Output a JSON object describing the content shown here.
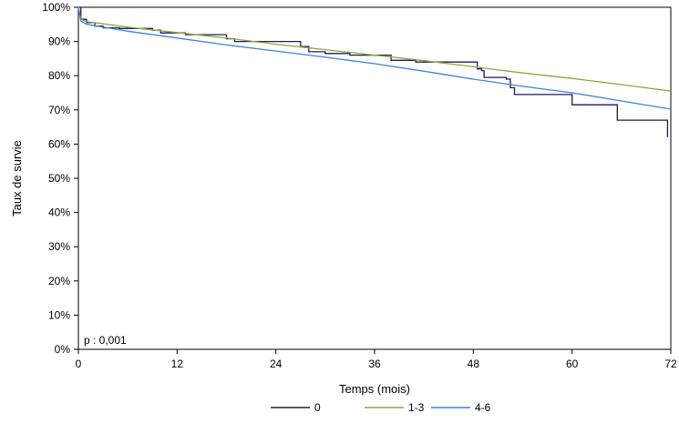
{
  "chart_data": {
    "type": "line",
    "xlabel": "Temps (mois)",
    "ylabel": "Taux de survie",
    "xlim": [
      0,
      72
    ],
    "ylim": [
      0,
      100
    ],
    "x_ticks": [
      "0",
      "12",
      "24",
      "36",
      "48",
      "60",
      "72"
    ],
    "y_ticks": [
      "0%",
      "10%",
      "20%",
      "30%",
      "40%",
      "50%",
      "60%",
      "70%",
      "80%",
      "90%",
      "100%"
    ],
    "grid": false,
    "legend_position": "bottom",
    "annotation": "p : 0,001",
    "series": [
      {
        "name": "0",
        "color": "#1c1c5c",
        "step": true,
        "points": [
          [
            0,
            100
          ],
          [
            0.3,
            96.5
          ],
          [
            1,
            95.5
          ],
          [
            2,
            94.5
          ],
          [
            3,
            94
          ],
          [
            5,
            93.8
          ],
          [
            9,
            93.3
          ],
          [
            10,
            92.5
          ],
          [
            13,
            92
          ],
          [
            17,
            92
          ],
          [
            18,
            90.8
          ],
          [
            19,
            90
          ],
          [
            26,
            90
          ],
          [
            27,
            88.5
          ],
          [
            28,
            87
          ],
          [
            30,
            86.5
          ],
          [
            33,
            86
          ],
          [
            37,
            86
          ],
          [
            38,
            84.5
          ],
          [
            41,
            84
          ],
          [
            45,
            84
          ],
          [
            48.2,
            84
          ],
          [
            48.5,
            82
          ],
          [
            49,
            81.5
          ],
          [
            49.3,
            79.5
          ],
          [
            52,
            79
          ],
          [
            52.5,
            76.5
          ],
          [
            53,
            74.5
          ],
          [
            58,
            74.5
          ],
          [
            60,
            71.5
          ],
          [
            65,
            71.5
          ],
          [
            65.5,
            67
          ],
          [
            71.5,
            67
          ],
          [
            71.6,
            62
          ]
        ]
      },
      {
        "name": "1-3",
        "color": "#8ea63a",
        "step": false,
        "points": [
          [
            0,
            100
          ],
          [
            0.3,
            96.5
          ],
          [
            1,
            95.8
          ],
          [
            6,
            94.2
          ],
          [
            12,
            92.6
          ],
          [
            18,
            91
          ],
          [
            24,
            89.2
          ],
          [
            30,
            87.6
          ],
          [
            36,
            86
          ],
          [
            42,
            84.4
          ],
          [
            48,
            82.6
          ],
          [
            54,
            80.8
          ],
          [
            60,
            79.2
          ],
          [
            66,
            77.4
          ],
          [
            72,
            75.5
          ]
        ]
      },
      {
        "name": "4-6",
        "color": "#3b85d8",
        "step": false,
        "points": [
          [
            0,
            100
          ],
          [
            0.3,
            96
          ],
          [
            1,
            95
          ],
          [
            6,
            93
          ],
          [
            12,
            91
          ],
          [
            18,
            89
          ],
          [
            24,
            87.2
          ],
          [
            30,
            85.4
          ],
          [
            36,
            83.5
          ],
          [
            42,
            81.3
          ],
          [
            48,
            79
          ],
          [
            54,
            76.9
          ],
          [
            60,
            75
          ],
          [
            66,
            72.6
          ],
          [
            72,
            70.2
          ]
        ]
      }
    ]
  }
}
